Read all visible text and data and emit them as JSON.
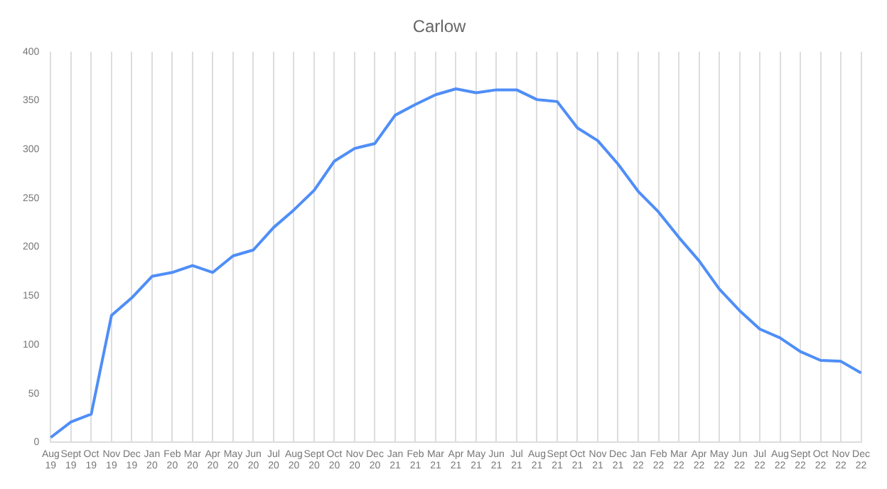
{
  "chart_data": {
    "type": "line",
    "title": "Carlow",
    "categories": [
      "Aug 19",
      "Sept 19",
      "Oct 19",
      "Nov 19",
      "Dec 19",
      "Jan 20",
      "Feb 20",
      "Mar 20",
      "Apr 20",
      "May 20",
      "Jun 20",
      "Jul 20",
      "Aug 20",
      "Sept 20",
      "Oct 20",
      "Nov 20",
      "Dec 20",
      "Jan 21",
      "Feb 21",
      "Mar 21",
      "Apr 21",
      "May 21",
      "Jun 21",
      "Jul 21",
      "Aug 21",
      "Sept 21",
      "Oct 21",
      "Nov 21",
      "Dec 21",
      "Jan 22",
      "Feb 22",
      "Mar 22",
      "Apr 22",
      "May 22",
      "Jun 22",
      "Jul 22",
      "Aug 22",
      "Sept 22",
      "Oct 22",
      "Nov 22",
      "Dec 22"
    ],
    "series": [
      {
        "color": "#4f8ef7",
        "values": [
          5,
          21,
          29,
          130,
          148,
          170,
          174,
          181,
          174,
          191,
          197,
          220,
          238,
          258,
          288,
          301,
          306,
          335,
          346,
          356,
          362,
          358,
          361,
          361,
          351,
          349,
          322,
          309,
          285,
          257,
          236,
          210,
          186,
          157,
          135,
          116,
          107,
          93,
          84,
          83,
          71
        ]
      }
    ],
    "ylim": [
      0,
      400
    ],
    "yticks": [
      0,
      50,
      100,
      150,
      200,
      250,
      300,
      350,
      400
    ],
    "grid": "x",
    "marker": "none",
    "line_style": "solid",
    "legend": false
  }
}
